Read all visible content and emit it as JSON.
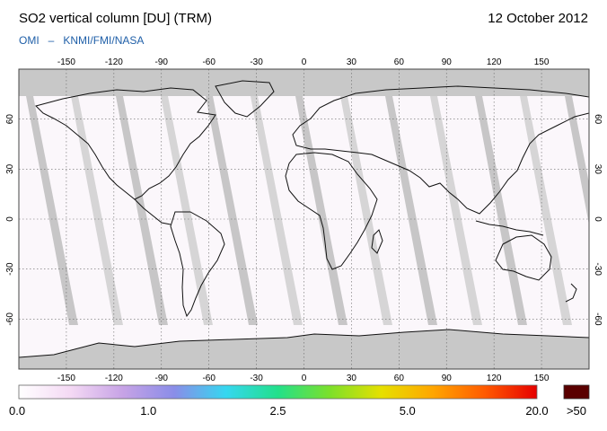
{
  "header": {
    "title": "SO2 vertical column [DU] (TRM)",
    "date": "12 October 2012",
    "credit_left": "OMI",
    "credit_sep": "–",
    "credit_right": "KNMI/FMI/NASA"
  },
  "map": {
    "lon_ticks": [
      "-150",
      "-120",
      "-90",
      "-60",
      "-30",
      "0",
      "30",
      "60",
      "90",
      "120",
      "150"
    ],
    "lat_ticks": [
      "60",
      "30",
      "0",
      "-30",
      "-60"
    ],
    "lon_range": [
      -180,
      180
    ],
    "lat_range": [
      -90,
      90
    ],
    "no_data_color": "#c8c8c8",
    "swath_color": "#bdbdbd"
  },
  "colorbar": {
    "labels": [
      "0.0",
      "1.0",
      "2.5",
      "5.0",
      "20.0"
    ],
    "overflow_label": ">50",
    "overflow_color": "#5a0000",
    "colors": [
      "#ffffff",
      "#f4d9f4",
      "#c7a3e6",
      "#8a8de8",
      "#35d7f0",
      "#22e08a",
      "#7ce02a",
      "#e6e000",
      "#ffa500",
      "#ff5a00",
      "#e60000"
    ]
  }
}
